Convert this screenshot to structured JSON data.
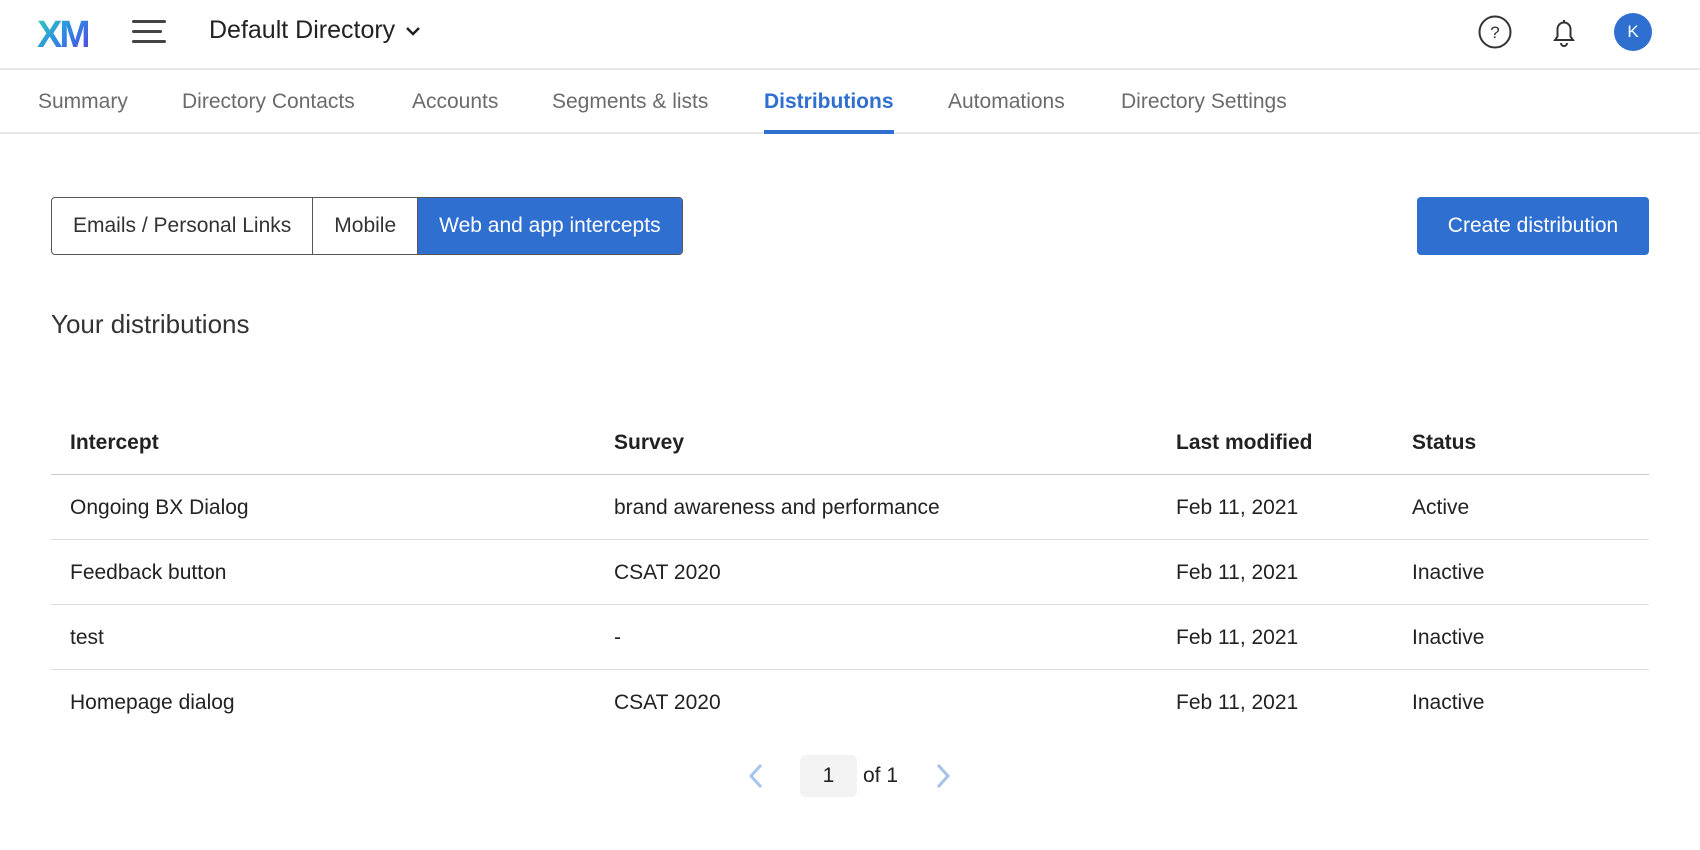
{
  "header": {
    "logo": "XM",
    "directory": "Default Directory",
    "avatar_initial": "K",
    "icons": [
      "menu-icon",
      "help-icon",
      "bell-icon"
    ]
  },
  "tabs": [
    {
      "label": "Summary"
    },
    {
      "label": "Directory Contacts"
    },
    {
      "label": "Accounts"
    },
    {
      "label": "Segments & lists"
    },
    {
      "label": "Distributions",
      "active": true
    },
    {
      "label": "Automations"
    },
    {
      "label": "Directory Settings"
    }
  ],
  "segments": [
    {
      "label": "Emails / Personal Links"
    },
    {
      "label": "Mobile"
    },
    {
      "label": "Web and app intercepts",
      "active": true
    }
  ],
  "create_label": "Create distribution",
  "section_title": "Your distributions",
  "table": {
    "headers": [
      "Intercept",
      "Survey",
      "Last modified",
      "Status"
    ],
    "rows": [
      [
        "Ongoing BX Dialog",
        "brand awareness and performance",
        "Feb 11, 2021",
        "Active"
      ],
      [
        "Feedback button",
        "CSAT 2020",
        "Feb 11, 2021",
        "Inactive"
      ],
      [
        "test",
        "-",
        "Feb 11, 2021",
        "Inactive"
      ],
      [
        "Homepage dialog",
        "CSAT 2020",
        "Feb 11, 2021",
        "Inactive"
      ]
    ]
  },
  "pagination": {
    "page": "1",
    "of": "of 1"
  },
  "colors": {
    "accent": "#2f6fd0"
  }
}
